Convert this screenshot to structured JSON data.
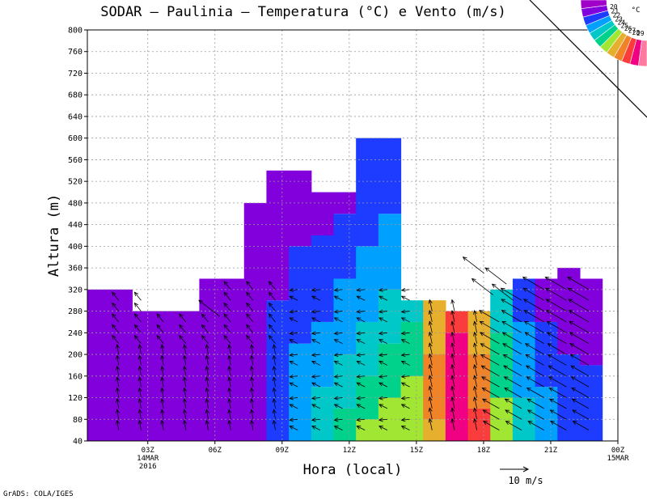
{
  "chart_data": {
    "type": "heatmap",
    "title": "SODAR – Paulinia – Temperatura (°C) e Vento (m/s)",
    "xlabel": "Hora (local)",
    "ylabel": "Altura (m)",
    "ylim": [
      40,
      800
    ],
    "yticks": [
      40,
      80,
      120,
      160,
      200,
      240,
      280,
      320,
      360,
      400,
      440,
      480,
      520,
      560,
      600,
      640,
      680,
      720,
      760,
      800
    ],
    "xlim": [
      0,
      23
    ],
    "xticks": [
      {
        "x": 3,
        "label": "03Z",
        "sub": [
          "14MAR",
          "2016"
        ]
      },
      {
        "x": 6,
        "label": "06Z",
        "sub": []
      },
      {
        "x": 9,
        "label": "09Z",
        "sub": []
      },
      {
        "x": 12,
        "label": "12Z",
        "sub": []
      },
      {
        "x": 15,
        "label": "15Z",
        "sub": []
      },
      {
        "x": 18,
        "label": "18Z",
        "sub": []
      },
      {
        "x": 21,
        "label": "21Z",
        "sub": []
      },
      {
        "x": 24,
        "label": "00Z",
        "sub": [
          "15MAR"
        ]
      }
    ],
    "top_height_profile": [
      {
        "x0": 0,
        "x1": 2,
        "top": 320
      },
      {
        "x0": 2,
        "x1": 5,
        "top": 280
      },
      {
        "x0": 5,
        "x1": 7,
        "top": 340
      },
      {
        "x0": 7,
        "x1": 8,
        "top": 480
      },
      {
        "x0": 8,
        "x1": 10,
        "top": 540
      },
      {
        "x0": 10,
        "x1": 12,
        "top": 500
      },
      {
        "x0": 12,
        "x1": 14,
        "top": 600
      },
      {
        "x0": 14,
        "x1": 15,
        "top": 300
      },
      {
        "x0": 15,
        "x1": 16,
        "top": 300
      },
      {
        "x0": 16,
        "x1": 18,
        "top": 280
      },
      {
        "x0": 18,
        "x1": 19,
        "top": 320
      },
      {
        "x0": 19,
        "x1": 21,
        "top": 340
      },
      {
        "x0": 21,
        "x1": 22,
        "top": 360
      },
      {
        "x0": 22,
        "x1": 23,
        "top": 340
      }
    ],
    "temperature_columns": [
      {
        "x": 0,
        "bands": [
          [
            20,
            800
          ]
        ]
      },
      {
        "x": 1,
        "bands": [
          [
            20,
            800
          ]
        ]
      },
      {
        "x": 2,
        "bands": [
          [
            20,
            800
          ]
        ]
      },
      {
        "x": 3,
        "bands": [
          [
            20,
            800
          ]
        ]
      },
      {
        "x": 4,
        "bands": [
          [
            20,
            800
          ]
        ]
      },
      {
        "x": 5,
        "bands": [
          [
            20,
            800
          ]
        ]
      },
      {
        "x": 6,
        "bands": [
          [
            20,
            800
          ]
        ]
      },
      {
        "x": 7,
        "bands": [
          [
            20,
            800
          ]
        ]
      },
      {
        "x": 8,
        "bands": [
          [
            21,
            300
          ],
          [
            20,
            800
          ]
        ]
      },
      {
        "x": 9,
        "bands": [
          [
            22,
            220
          ],
          [
            21,
            400
          ],
          [
            20,
            800
          ]
        ]
      },
      {
        "x": 10,
        "bands": [
          [
            23,
            140
          ],
          [
            22,
            260
          ],
          [
            21,
            420
          ],
          [
            20,
            800
          ]
        ]
      },
      {
        "x": 11,
        "bands": [
          [
            24,
            100
          ],
          [
            23,
            200
          ],
          [
            22,
            340
          ],
          [
            21,
            460
          ],
          [
            20,
            800
          ]
        ]
      },
      {
        "x": 12,
        "bands": [
          [
            25,
            80
          ],
          [
            24,
            160
          ],
          [
            23,
            260
          ],
          [
            22,
            400
          ],
          [
            21,
            800
          ]
        ]
      },
      {
        "x": 13,
        "bands": [
          [
            25,
            120
          ],
          [
            24,
            220
          ],
          [
            23,
            320
          ],
          [
            22,
            460
          ],
          [
            21,
            800
          ]
        ]
      },
      {
        "x": 14,
        "bands": [
          [
            25,
            160
          ],
          [
            24,
            260
          ],
          [
            23,
            800
          ]
        ]
      },
      {
        "x": 15,
        "bands": [
          [
            26,
            80
          ],
          [
            27,
            200
          ],
          [
            26,
            300
          ]
        ]
      },
      {
        "x": 16,
        "bands": [
          [
            29,
            240
          ],
          [
            28,
            300
          ]
        ]
      },
      {
        "x": 17,
        "bands": [
          [
            28,
            100
          ],
          [
            27,
            200
          ],
          [
            26,
            300
          ]
        ]
      },
      {
        "x": 18,
        "bands": [
          [
            25,
            120
          ],
          [
            24,
            240
          ],
          [
            23,
            320
          ]
        ]
      },
      {
        "x": 19,
        "bands": [
          [
            23,
            120
          ],
          [
            22,
            260
          ],
          [
            21,
            340
          ]
        ]
      },
      {
        "x": 20,
        "bands": [
          [
            22,
            140
          ],
          [
            21,
            260
          ],
          [
            20,
            340
          ]
        ]
      },
      {
        "x": 21,
        "bands": [
          [
            21,
            200
          ],
          [
            20,
            360
          ]
        ]
      },
      {
        "x": 22,
        "bands": [
          [
            21,
            180
          ],
          [
            20,
            340
          ]
        ]
      }
    ],
    "wind_barbs_present": true,
    "wind_scale": {
      "label": "10 m/s"
    },
    "colorbar": {
      "unit": "°C",
      "levels": [
        20,
        21,
        22,
        23,
        24,
        25,
        26,
        27,
        28,
        29
      ],
      "colors": [
        "#a000c8",
        "#8200dc",
        "#1e3cff",
        "#00a0ff",
        "#00c8c8",
        "#00d28c",
        "#a0e632",
        "#e6af2d",
        "#f08228",
        "#fa3c3c",
        "#f00082",
        "#ff7aa0"
      ]
    },
    "grid": true
  },
  "credit": "GrADS: COLA/IGES"
}
